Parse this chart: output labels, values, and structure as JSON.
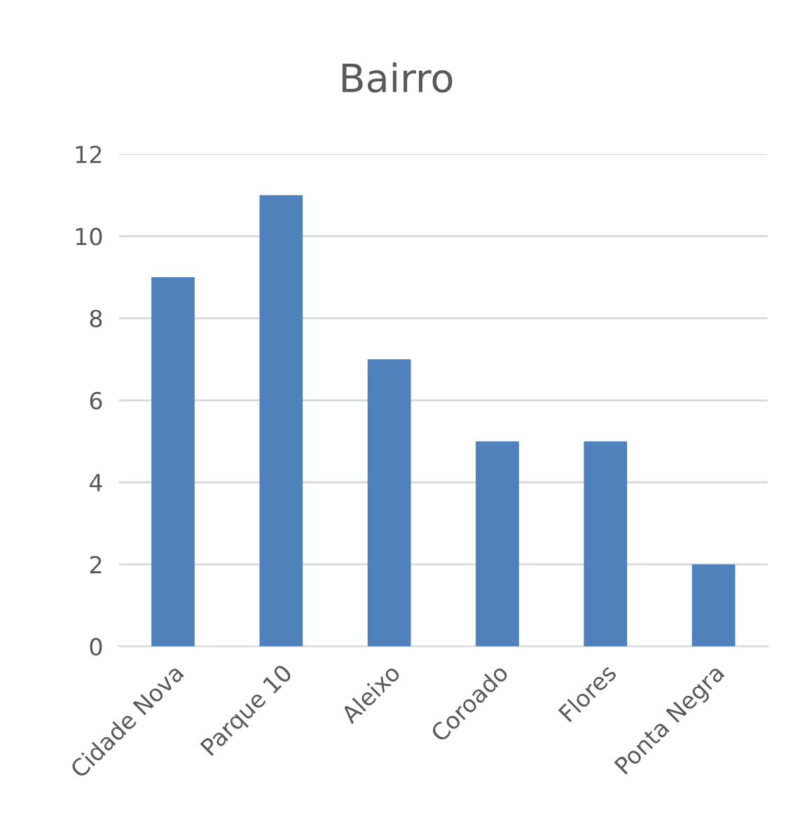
{
  "chart_data": {
    "type": "bar",
    "title": "Bairro",
    "categories": [
      "Cidade Nova",
      "Parque 10",
      "Aleixo",
      "Coroado",
      "Flores",
      "Ponta Negra"
    ],
    "values": [
      9,
      11,
      7,
      5,
      5,
      2
    ],
    "color": "#4f81bd",
    "ylim": [
      0,
      12
    ],
    "yticks": [
      0,
      2,
      4,
      6,
      8,
      10,
      12
    ],
    "grid": "y",
    "legend": false
  }
}
